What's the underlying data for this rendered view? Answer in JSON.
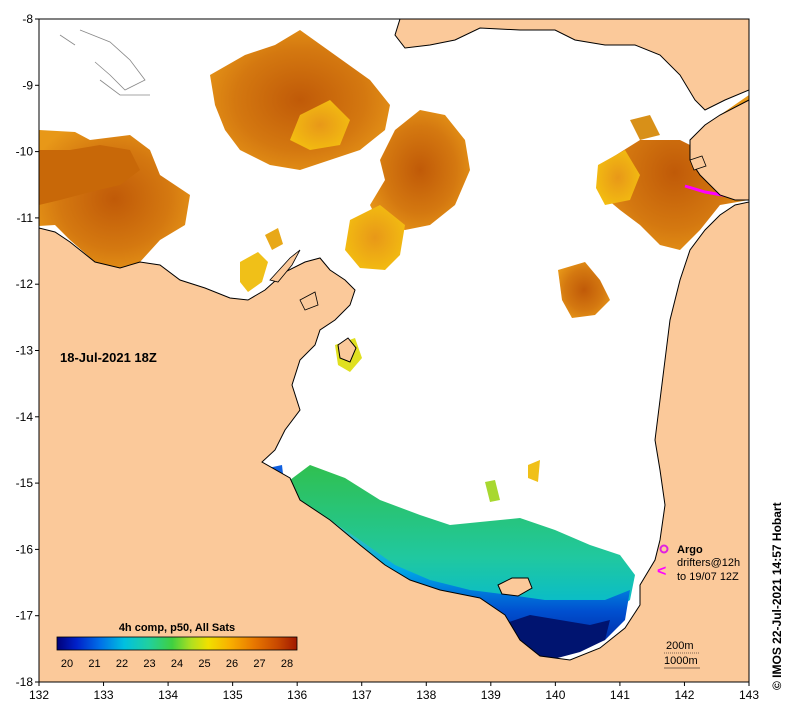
{
  "map": {
    "date_label": "18-Jul-2021 18Z",
    "lon_ticks": [
      "132",
      "133",
      "134",
      "135",
      "136",
      "137",
      "138",
      "139",
      "140",
      "141",
      "142",
      "143"
    ],
    "lat_ticks": [
      "-8",
      "-9",
      "-10",
      "-11",
      "-12",
      "-13",
      "-14",
      "-15",
      "-16",
      "-17",
      "-18"
    ],
    "lon_range": [
      132,
      143
    ],
    "lat_range": [
      -18,
      -8
    ],
    "land_color": "#fbc99a",
    "no_data_color": "#ffffff"
  },
  "colorbar": {
    "title": "4h comp, p50, All Sats",
    "labels": [
      "20",
      "21",
      "22",
      "23",
      "24",
      "25",
      "26",
      "27",
      "28"
    ],
    "value_range": [
      20,
      28
    ]
  },
  "legend": {
    "argo_label": "Argo",
    "drifters_line1": "drifters@12h",
    "drifters_line2": "to 19/07 12Z",
    "drifter_symbol": "<",
    "argo_color": "#e020e0",
    "drifter_color": "#ff00ff"
  },
  "contours": {
    "label_200m": "200m",
    "label_1000m": "1000m"
  },
  "credit": "© IMOS 22-Jul-2021 14:57 Hobart"
}
